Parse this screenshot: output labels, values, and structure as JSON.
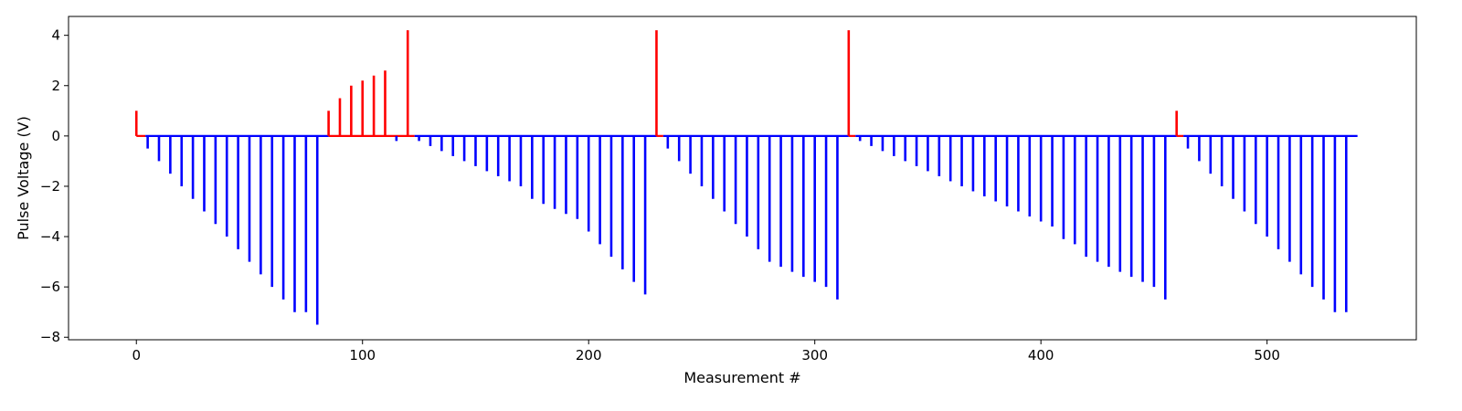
{
  "chart_data": {
    "type": "bar",
    "title": "",
    "xlabel": "Measurement #",
    "ylabel": "Pulse Voltage (V)",
    "xlim": [
      -30,
      566
    ],
    "ylim": [
      -8.1,
      4.75
    ],
    "xticks": [
      0,
      100,
      200,
      300,
      400,
      500
    ],
    "xtick_labels": [
      "0",
      "100",
      "200",
      "300",
      "400",
      "500"
    ],
    "yticks": [
      -8,
      -6,
      -4,
      -2,
      0,
      2,
      4
    ],
    "ytick_labels": [
      "−8",
      "−6",
      "−4",
      "−2",
      "0",
      "2",
      "4"
    ],
    "grid": false,
    "baseline_range": [
      0,
      540
    ],
    "colors": {
      "positive": "#ff0000",
      "negative": "#0000ff",
      "axes": "#000000"
    },
    "series": [
      {
        "color": "#ff0000",
        "x": [
          0,
          85,
          90,
          95,
          100,
          105,
          110,
          120,
          230,
          315,
          460
        ],
        "values": [
          1.0,
          1.0,
          1.5,
          2.0,
          2.2,
          2.4,
          2.6,
          4.2,
          4.2,
          4.2,
          1.0
        ],
        "baseline_segments": [
          [
            0,
            4
          ],
          [
            85,
            123
          ],
          [
            230,
            233
          ],
          [
            315,
            318
          ],
          [
            460,
            463
          ]
        ]
      },
      {
        "color": "#0000ff",
        "x": [
          5,
          10,
          15,
          20,
          25,
          30,
          35,
          40,
          45,
          50,
          55,
          60,
          65,
          70,
          75,
          80,
          115,
          125,
          130,
          135,
          140,
          145,
          150,
          155,
          160,
          165,
          170,
          175,
          180,
          185,
          190,
          195,
          200,
          205,
          210,
          215,
          220,
          225,
          235,
          240,
          245,
          250,
          255,
          260,
          265,
          270,
          275,
          280,
          285,
          290,
          295,
          300,
          305,
          310,
          320,
          325,
          330,
          335,
          340,
          345,
          350,
          355,
          360,
          365,
          370,
          375,
          380,
          385,
          390,
          395,
          400,
          405,
          410,
          415,
          420,
          425,
          430,
          435,
          440,
          445,
          450,
          455,
          465,
          470,
          475,
          480,
          485,
          490,
          495,
          500,
          505,
          510,
          515,
          520,
          525,
          530,
          535
        ],
        "values": [
          -0.5,
          -1.0,
          -1.5,
          -2.0,
          -2.5,
          -3.0,
          -3.5,
          -4.0,
          -4.5,
          -5.0,
          -5.5,
          -6.0,
          -6.5,
          -7.0,
          -7.0,
          -7.5,
          -0.2,
          -0.2,
          -0.4,
          -0.6,
          -0.8,
          -1.0,
          -1.2,
          -1.4,
          -1.6,
          -1.8,
          -2.0,
          -2.5,
          -2.7,
          -2.9,
          -3.1,
          -3.3,
          -3.8,
          -4.3,
          -4.8,
          -5.3,
          -5.8,
          -6.3,
          -0.5,
          -1.0,
          -1.5,
          -2.0,
          -2.5,
          -3.0,
          -3.5,
          -4.0,
          -4.5,
          -5.0,
          -5.2,
          -5.4,
          -5.6,
          -5.8,
          -6.0,
          -6.5,
          -0.2,
          -0.4,
          -0.6,
          -0.8,
          -1.0,
          -1.2,
          -1.4,
          -1.6,
          -1.8,
          -2.0,
          -2.2,
          -2.4,
          -2.6,
          -2.8,
          -3.0,
          -3.2,
          -3.4,
          -3.6,
          -4.1,
          -4.3,
          -4.8,
          -5.0,
          -5.2,
          -5.4,
          -5.6,
          -5.8,
          -6.0,
          -6.5,
          -0.5,
          -1.0,
          -1.5,
          -2.0,
          -2.5,
          -3.0,
          -3.5,
          -4.0,
          -4.5,
          -5.0,
          -5.5,
          -6.0,
          -6.5,
          -7.0,
          -7.0
        ],
        "baseline_segments": [
          [
            4,
            85
          ],
          [
            123,
            230
          ],
          [
            233,
            315
          ],
          [
            318,
            460
          ],
          [
            463,
            540
          ]
        ]
      }
    ]
  }
}
